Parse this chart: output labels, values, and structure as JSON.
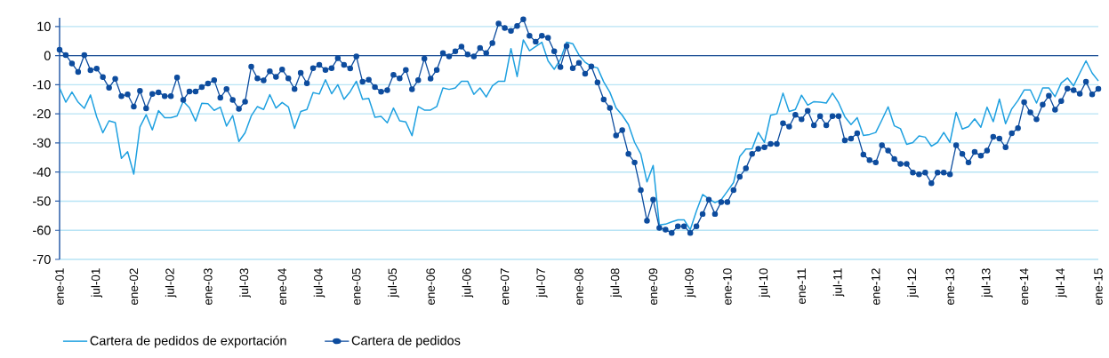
{
  "chart_data": {
    "type": "line",
    "categories": [
      "ene-01",
      null,
      null,
      null,
      null,
      null,
      "jul-01",
      null,
      null,
      null,
      null,
      null,
      "ene-02",
      null,
      null,
      null,
      null,
      null,
      "jul-02",
      null,
      null,
      null,
      null,
      null,
      "ene-03",
      null,
      null,
      null,
      null,
      null,
      "jul-03",
      null,
      null,
      null,
      null,
      null,
      "ene-04",
      null,
      null,
      null,
      null,
      null,
      "jul-04",
      null,
      null,
      null,
      null,
      null,
      "ene-05",
      null,
      null,
      null,
      null,
      null,
      "jul-05",
      null,
      null,
      null,
      null,
      null,
      "ene-06",
      null,
      null,
      null,
      null,
      null,
      "jul-06",
      null,
      null,
      null,
      null,
      null,
      "ene-07",
      null,
      null,
      null,
      null,
      null,
      "jul-07",
      null,
      null,
      null,
      null,
      null,
      "ene-08",
      null,
      null,
      null,
      null,
      null,
      "jul-08",
      null,
      null,
      null,
      null,
      null,
      "ene-09",
      null,
      null,
      null,
      null,
      null,
      "jul-09",
      null,
      null,
      null,
      null,
      null,
      "ene-10",
      null,
      null,
      null,
      null,
      null,
      "jul-10",
      null,
      null,
      null,
      null,
      null,
      "ene-11",
      null,
      null,
      null,
      null,
      null,
      "jul-11",
      null,
      null,
      null,
      null,
      null,
      "ene-12",
      null,
      null,
      null,
      null,
      null,
      "jul-12",
      null,
      null,
      null,
      null,
      null,
      "ene-13",
      null,
      null,
      null,
      null,
      null,
      "jul-13",
      null,
      null,
      null,
      null,
      null,
      "ene-14",
      null,
      null,
      null,
      null,
      null,
      "jul-14",
      null,
      null,
      null,
      null,
      null,
      "ene-15"
    ],
    "series": [
      {
        "name": "Cartera de pedidos de exportación",
        "color": "#1ea0e0",
        "marker": "none",
        "values": [
          -11.1,
          -16.0,
          -12.5,
          -16.0,
          -18.1,
          -13.5,
          -21.0,
          -26.5,
          -22.4,
          -23.0,
          -35.3,
          -33.0,
          -40.7,
          -24.5,
          -20.3,
          -25.5,
          -18.9,
          -21.3,
          -21.3,
          -20.7,
          -15.7,
          -17.9,
          -22.5,
          -16.4,
          -16.5,
          -18.8,
          -17.7,
          -24.2,
          -20.6,
          -29.5,
          -26.5,
          -20.7,
          -17.5,
          -18.5,
          -13.4,
          -18.0,
          -16.1,
          -17.6,
          -25.0,
          -19.2,
          -18.5,
          -12.7,
          -13.2,
          -8.3,
          -13.1,
          -10.0,
          -15.0,
          -12.4,
          -8.8,
          -15.0,
          -14.7,
          -21.2,
          -20.9,
          -23.1,
          -18.0,
          -22.4,
          -22.8,
          -27.5,
          -17.5,
          -18.7,
          -18.7,
          -17.5,
          -11.1,
          -11.6,
          -11.1,
          -8.8,
          -8.8,
          -13.3,
          -11.1,
          -14.2,
          -10.4,
          -8.8,
          -8.8,
          2.4,
          -7.2,
          5.4,
          1.7,
          3.1,
          4.6,
          -1.8,
          -4.7,
          -1.3,
          4.6,
          4.1,
          0.2,
          -2.3,
          -3.7,
          -4.2,
          -9.0,
          -12.6,
          -18.0,
          -20.5,
          -23.7,
          -29.8,
          -33.8,
          -43.4,
          -37.7,
          -58.2,
          -57.9,
          -57.1,
          -56.4,
          -56.4,
          -59.8,
          -53.4,
          -47.7,
          -49.2,
          -50.5,
          -49.5,
          -46.6,
          -43.6,
          -34.7,
          -32.1,
          -32.0,
          -26.4,
          -29.8,
          -20.5,
          -20.0,
          -12.9,
          -19.2,
          -18.5,
          -13.6,
          -17.0,
          -15.8,
          -16.0,
          -16.3,
          -12.9,
          -16.2,
          -21.0,
          -23.7,
          -21.3,
          -27.4,
          -27.1,
          -26.4,
          -22.1,
          -17.6,
          -24.1,
          -25.1,
          -30.5,
          -29.9,
          -27.6,
          -28.0,
          -31.1,
          -29.8,
          -26.4,
          -29.8,
          -19.5,
          -25.2,
          -24.4,
          -21.7,
          -24.6,
          -17.7,
          -22.7,
          -14.9,
          -23.4,
          -18.3,
          -15.4,
          -11.8,
          -11.8,
          -16.3,
          -11.1,
          -11.1,
          -14.1,
          -9.4,
          -7.7,
          -10.4,
          -6.0,
          -1.8,
          -6.0,
          -8.7
        ]
      },
      {
        "name": "Cartera de pedidos",
        "color": "#0d4c9e",
        "marker": "circle",
        "values": [
          2.0,
          0.2,
          -2.7,
          -5.6,
          0.2,
          -5.0,
          -4.5,
          -7.4,
          -11.0,
          -8.0,
          -13.9,
          -13.3,
          -17.5,
          -12.1,
          -18.1,
          -13.2,
          -12.6,
          -13.9,
          -13.9,
          -7.5,
          -15.2,
          -12.3,
          -12.3,
          -10.8,
          -9.6,
          -8.4,
          -14.5,
          -11.5,
          -15.2,
          -18.3,
          -15.8,
          -3.8,
          -7.8,
          -8.5,
          -5.4,
          -7.3,
          -4.8,
          -7.8,
          -11.5,
          -5.9,
          -9.5,
          -4.3,
          -3.2,
          -4.9,
          -4.3,
          -0.9,
          -3.2,
          -4.4,
          -0.3,
          -9.0,
          -8.3,
          -10.8,
          -12.4,
          -11.9,
          -6.6,
          -7.8,
          -4.9,
          -11.6,
          -8.4,
          -1.0,
          -7.9,
          -4.9,
          0.9,
          -0.3,
          1.5,
          3.1,
          0.4,
          -0.3,
          2.6,
          0.9,
          4.3,
          11.0,
          9.5,
          8.5,
          10.2,
          12.5,
          6.8,
          4.8,
          6.8,
          6.1,
          1.5,
          -3.9,
          3.3,
          -4.3,
          -2.5,
          -6.2,
          -3.7,
          -9.2,
          -15.1,
          -18.0,
          -27.4,
          -25.6,
          -33.8,
          -36.7,
          -46.2,
          -56.7,
          -49.5,
          -59.2,
          -59.8,
          -60.9,
          -58.6,
          -58.6,
          -60.9,
          -58.6,
          -54.4,
          -49.5,
          -54.4,
          -50.3,
          -50.3,
          -46.2,
          -41.6,
          -38.7,
          -33.8,
          -32.0,
          -31.5,
          -30.3,
          -30.3,
          -23.2,
          -24.4,
          -20.3,
          -21.9,
          -19.0,
          -23.9,
          -20.8,
          -23.9,
          -20.8,
          -20.8,
          -29.1,
          -28.5,
          -26.7,
          -34.0,
          -35.9,
          -36.7,
          -30.8,
          -32.6,
          -35.5,
          -37.2,
          -37.2,
          -40.2,
          -40.8,
          -40.2,
          -43.8,
          -40.2,
          -40.2,
          -40.8,
          -30.8,
          -33.8,
          -36.7,
          -33.1,
          -34.4,
          -32.6,
          -27.9,
          -28.5,
          -31.5,
          -26.7,
          -24.9,
          -16.0,
          -19.5,
          -21.9,
          -16.8,
          -13.8,
          -18.6,
          -15.6,
          -11.3,
          -11.9,
          -13.1,
          -9.0,
          -13.3,
          -11.4
        ]
      }
    ],
    "ylim": [
      -70,
      13
    ],
    "ref_lines": [
      {
        "axis": "y",
        "value": 0,
        "color": "#1f4f96"
      }
    ],
    "yticks": [
      -70,
      -60,
      -50,
      -40,
      -30,
      -20,
      -10,
      0,
      10
    ],
    "grid": "y",
    "legend": "bottom",
    "line_style": "solid"
  }
}
